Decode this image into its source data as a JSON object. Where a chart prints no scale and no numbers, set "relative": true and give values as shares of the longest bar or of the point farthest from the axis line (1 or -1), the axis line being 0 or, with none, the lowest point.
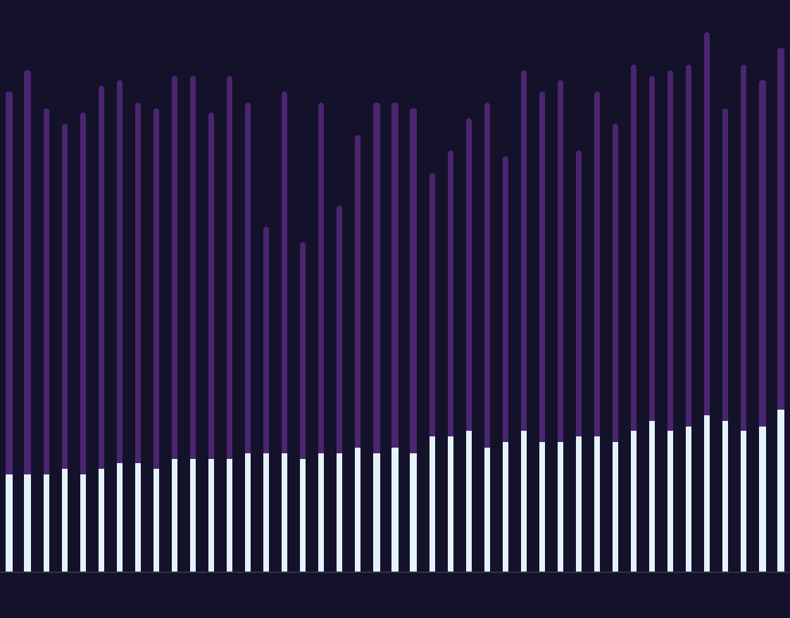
{
  "chart_data": {
    "type": "bar",
    "relative": true,
    "stacked": true,
    "categories": [
      null,
      null,
      null,
      null,
      null,
      null,
      null,
      null,
      null,
      null,
      null,
      null,
      null,
      null,
      null,
      null,
      null,
      null,
      null,
      null,
      null,
      null,
      null,
      null,
      null,
      null,
      null,
      null,
      null,
      null,
      null,
      null,
      null,
      null,
      null,
      null,
      null,
      null,
      null,
      null,
      null,
      null,
      null
    ],
    "series": [
      {
        "color": "#e4f3fb",
        "values": [
          0.18,
          0.18,
          0.18,
          0.19,
          0.18,
          0.19,
          0.2,
          0.2,
          0.19,
          0.21,
          0.21,
          0.21,
          0.21,
          0.22,
          0.22,
          0.22,
          0.21,
          0.22,
          0.22,
          0.23,
          0.22,
          0.23,
          0.22,
          0.25,
          0.25,
          0.26,
          0.23,
          0.24,
          0.26,
          0.24,
          0.24,
          0.25,
          0.25,
          0.24,
          0.26,
          0.28,
          0.26,
          0.27,
          0.29,
          0.28,
          0.26,
          0.27,
          0.3
        ]
      },
      {
        "color": "#4a2570",
        "values": [
          0.71,
          0.75,
          0.68,
          0.64,
          0.67,
          0.71,
          0.71,
          0.67,
          0.67,
          0.71,
          0.71,
          0.64,
          0.71,
          0.65,
          0.42,
          0.67,
          0.4,
          0.65,
          0.46,
          0.58,
          0.65,
          0.64,
          0.64,
          0.49,
          0.53,
          0.58,
          0.64,
          0.53,
          0.67,
          0.65,
          0.67,
          0.53,
          0.64,
          0.59,
          0.68,
          0.64,
          0.67,
          0.67,
          0.71,
          0.58,
          0.68,
          0.64,
          0.67
        ]
      }
    ]
  }
}
